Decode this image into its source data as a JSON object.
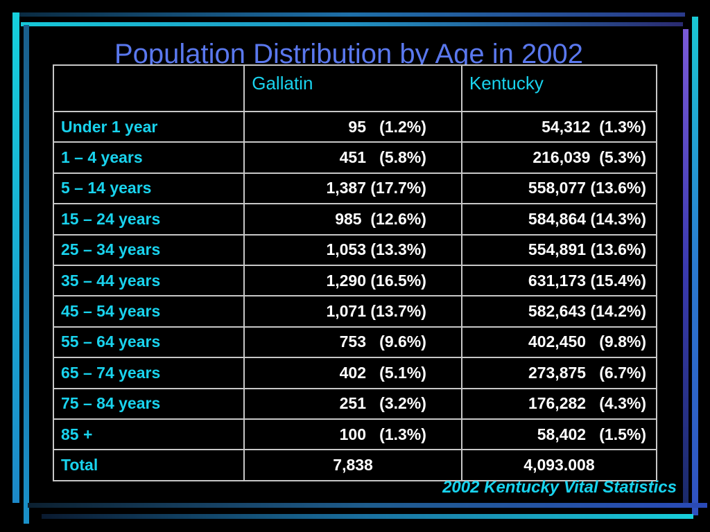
{
  "title": "Population Distribution by Age in 2002",
  "table": {
    "columns": [
      "",
      "Gallatin",
      "Kentucky"
    ],
    "rows": [
      {
        "label": "Under 1 year",
        "gallatin": "95   (1.2%)",
        "kentucky": "54,312  (1.3%)"
      },
      {
        "label": "1 – 4 years",
        "gallatin": "451   (5.8%)",
        "kentucky": "216,039  (5.3%)"
      },
      {
        "label": "5 – 14 years",
        "gallatin": "1,387 (17.7%)",
        "kentucky": "558,077 (13.6%)"
      },
      {
        "label": "15 – 24 years",
        "gallatin": "985  (12.6%)",
        "kentucky": "584,864 (14.3%)"
      },
      {
        "label": "25 – 34 years",
        "gallatin": "1,053 (13.3%)",
        "kentucky": "554,891 (13.6%)"
      },
      {
        "label": "35 – 44 years",
        "gallatin": "1,290 (16.5%)",
        "kentucky": "631,173 (15.4%)"
      },
      {
        "label": "45 – 54 years",
        "gallatin": "1,071 (13.7%)",
        "kentucky": "582,643 (14.2%)"
      },
      {
        "label": "55 – 64 years",
        "gallatin": "753   (9.6%)",
        "kentucky": "402,450   (9.8%)"
      },
      {
        "label": "65 – 74 years",
        "gallatin": "402   (5.1%)",
        "kentucky": "273,875   (6.7%)"
      },
      {
        "label": "75 – 84 years",
        "gallatin": "251   (3.2%)",
        "kentucky": "176,282   (4.3%)"
      },
      {
        "label": "85 +",
        "gallatin": "100   (1.3%)",
        "kentucky": "58,402   (1.5%)"
      }
    ],
    "total": {
      "label": "Total",
      "gallatin": "7,838",
      "kentucky": "4,093.008"
    }
  },
  "source": "2002 Kentucky Vital Statistics",
  "colors": {
    "background": "#000000",
    "title": "#5a78ee",
    "accent_cyan": "#19d3ee",
    "text": "#ffffff",
    "border": "#c8c8c8"
  }
}
